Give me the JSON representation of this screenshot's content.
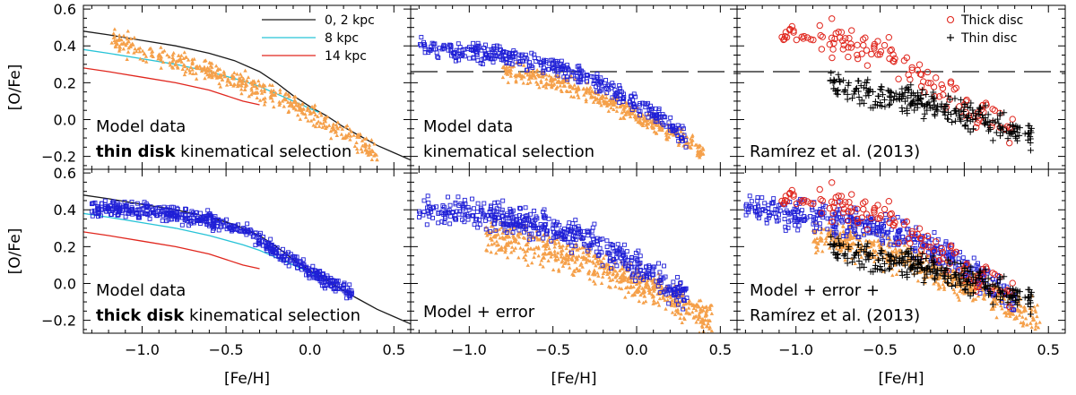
{
  "figure": {
    "x_label": "[Fe/H]",
    "y_label": "[O/Fe]",
    "x_ticks": [
      "−1.0",
      "−0.5",
      "0.0",
      "0.5"
    ],
    "y_ticks": [
      "0.6",
      "0.4",
      "0.2",
      "0.0",
      "−0.2"
    ]
  },
  "chart_data": [
    {
      "type": "scatter",
      "panel": "top-left",
      "xlim": [
        -1.35,
        0.6
      ],
      "ylim": [
        -0.27,
        0.62
      ],
      "annotation": [
        "Model data",
        "thin disk",
        " kinematical selection"
      ],
      "legend": {
        "position": "top-right",
        "entries": [
          {
            "label": "0, 2  kpc",
            "color": "#1a1a1a"
          },
          {
            "label": "8  kpc",
            "color": "#27c3d7"
          },
          {
            "label": "14  kpc",
            "color": "#e0261d"
          }
        ]
      },
      "series": [
        {
          "name": "0, 2  kpc",
          "style": "line",
          "color": "#1a1a1a",
          "x": [
            -1.35,
            -1.2,
            -1.0,
            -0.8,
            -0.6,
            -0.45,
            -0.3,
            -0.2,
            -0.1,
            0.0,
            0.1,
            0.2,
            0.3,
            0.4,
            0.5,
            0.6
          ],
          "y": [
            0.48,
            0.46,
            0.43,
            0.4,
            0.36,
            0.32,
            0.26,
            0.2,
            0.13,
            0.07,
            0.02,
            -0.04,
            -0.09,
            -0.14,
            -0.18,
            -0.22
          ]
        },
        {
          "name": "8  kpc",
          "style": "line",
          "color": "#27c3d7",
          "x": [
            -1.35,
            -1.2,
            -1.0,
            -0.8,
            -0.6,
            -0.4,
            -0.3,
            -0.2,
            -0.1,
            0.0,
            0.05
          ],
          "y": [
            0.38,
            0.36,
            0.33,
            0.3,
            0.26,
            0.21,
            0.18,
            0.14,
            0.1,
            0.06,
            0.04
          ]
        },
        {
          "name": "14  kpc",
          "style": "line",
          "color": "#e0261d",
          "x": [
            -1.35,
            -1.2,
            -1.0,
            -0.8,
            -0.6,
            -0.4,
            -0.3
          ],
          "y": [
            0.28,
            0.26,
            0.23,
            0.2,
            0.16,
            0.1,
            0.08
          ]
        },
        {
          "name": "",
          "style": "scatter-triangle",
          "color": "#f5a04a",
          "n": 450,
          "seed": 11,
          "x": [
            -1.2,
            -1.0,
            -0.8,
            -0.6,
            -0.4,
            -0.2,
            0.0,
            0.2,
            0.4
          ],
          "y": [
            0.44,
            0.37,
            0.32,
            0.26,
            0.2,
            0.12,
            0.03,
            -0.07,
            -0.19
          ],
          "spread": 0.035
        }
      ]
    },
    {
      "type": "scatter",
      "panel": "top-middle",
      "xlim": [
        -1.35,
        0.6
      ],
      "ylim": [
        -0.27,
        0.62
      ],
      "annotation": [
        "Model data",
        "kinematical selection"
      ],
      "dashed_line_y": 0.26,
      "series": [
        {
          "name": "",
          "style": "scatter-triangle",
          "color": "#f5a04a",
          "n": 420,
          "seed": 21,
          "x": [
            -0.8,
            -0.6,
            -0.4,
            -0.2,
            0.0,
            0.2,
            0.4
          ],
          "y": [
            0.26,
            0.23,
            0.18,
            0.11,
            0.03,
            -0.07,
            -0.18
          ],
          "spread": 0.03
        },
        {
          "name": "",
          "style": "scatter-square",
          "color": "#1f1fd6",
          "n": 380,
          "seed": 31,
          "x": [
            -1.3,
            -1.1,
            -0.9,
            -0.7,
            -0.5,
            -0.3,
            -0.1,
            0.1,
            0.3
          ],
          "y": [
            0.4,
            0.38,
            0.36,
            0.33,
            0.29,
            0.23,
            0.14,
            0.04,
            -0.1
          ],
          "spread": 0.03
        }
      ]
    },
    {
      "type": "scatter",
      "panel": "top-right",
      "xlim": [
        -1.35,
        0.6
      ],
      "ylim": [
        -0.27,
        0.62
      ],
      "annotation": [
        "Ramírez et al. (2013)"
      ],
      "legend": {
        "position": "top-right",
        "entries": [
          {
            "label": "Thick disc",
            "marker": "circle",
            "color": "#e0261d"
          },
          {
            "label": "Thin disc",
            "marker": "plus",
            "color": "#000000"
          }
        ]
      },
      "dashed_line_y": 0.26,
      "series": [
        {
          "name": "Thick disc",
          "style": "scatter-circle",
          "color": "#e0261d",
          "n": 130,
          "seed": 41,
          "x": [
            -1.1,
            -0.9,
            -0.7,
            -0.5,
            -0.3,
            -0.1,
            0.1,
            0.3
          ],
          "y": [
            0.46,
            0.44,
            0.42,
            0.36,
            0.27,
            0.15,
            0.04,
            -0.06
          ],
          "spread": 0.055
        },
        {
          "name": "Thin disc",
          "style": "scatter-plus",
          "color": "#000000",
          "n": 280,
          "seed": 51,
          "x": [
            -0.8,
            -0.6,
            -0.4,
            -0.2,
            0.0,
            0.2,
            0.4
          ],
          "y": [
            0.2,
            0.15,
            0.11,
            0.08,
            0.03,
            -0.03,
            -0.09
          ],
          "spread": 0.045
        }
      ]
    },
    {
      "type": "scatter",
      "panel": "bottom-left",
      "xlim": [
        -1.35,
        0.6
      ],
      "ylim": [
        -0.27,
        0.62
      ],
      "annotation": [
        "Model data",
        "thick disk",
        " kinematical selection"
      ],
      "series": [
        {
          "name": "0, 2  kpc",
          "style": "line",
          "color": "#1a1a1a",
          "x": [
            -1.35,
            -1.2,
            -1.0,
            -0.8,
            -0.6,
            -0.45,
            -0.3,
            -0.2,
            -0.1,
            0.0,
            0.1,
            0.2,
            0.3,
            0.4,
            0.5,
            0.6
          ],
          "y": [
            0.48,
            0.46,
            0.43,
            0.4,
            0.36,
            0.32,
            0.26,
            0.2,
            0.13,
            0.07,
            0.02,
            -0.04,
            -0.09,
            -0.14,
            -0.18,
            -0.22
          ]
        },
        {
          "name": "8  kpc",
          "style": "line",
          "color": "#27c3d7",
          "x": [
            -1.35,
            -1.2,
            -1.0,
            -0.8,
            -0.6,
            -0.4,
            -0.3,
            -0.2,
            -0.1,
            0.0,
            0.05
          ],
          "y": [
            0.38,
            0.36,
            0.33,
            0.3,
            0.26,
            0.21,
            0.18,
            0.14,
            0.1,
            0.06,
            0.04
          ]
        },
        {
          "name": "14  kpc",
          "style": "line",
          "color": "#e0261d",
          "x": [
            -1.35,
            -1.2,
            -1.0,
            -0.8,
            -0.6,
            -0.4,
            -0.3
          ],
          "y": [
            0.28,
            0.26,
            0.23,
            0.2,
            0.16,
            0.1,
            0.08
          ]
        },
        {
          "name": "",
          "style": "scatter-square",
          "color": "#1f1fd6",
          "n": 520,
          "seed": 61,
          "x": [
            -1.3,
            -1.1,
            -0.9,
            -0.7,
            -0.5,
            -0.35,
            -0.2,
            -0.05,
            0.1,
            0.25
          ],
          "y": [
            0.41,
            0.4,
            0.38,
            0.36,
            0.32,
            0.27,
            0.18,
            0.09,
            0.02,
            -0.06
          ],
          "spread": 0.025
        }
      ]
    },
    {
      "type": "scatter",
      "panel": "bottom-middle",
      "xlim": [
        -1.35,
        0.6
      ],
      "ylim": [
        -0.27,
        0.62
      ],
      "annotation": [
        "Model + error"
      ],
      "series": [
        {
          "name": "",
          "style": "scatter-triangle",
          "color": "#f5a04a",
          "n": 650,
          "seed": 71,
          "x": [
            -0.9,
            -0.7,
            -0.5,
            -0.3,
            -0.1,
            0.1,
            0.3,
            0.45
          ],
          "y": [
            0.26,
            0.23,
            0.18,
            0.12,
            0.04,
            -0.04,
            -0.13,
            -0.2
          ],
          "spread": 0.055
        },
        {
          "name": "",
          "style": "scatter-square",
          "color": "#1f1fd6",
          "n": 480,
          "seed": 81,
          "x": [
            -1.3,
            -1.1,
            -0.9,
            -0.7,
            -0.5,
            -0.3,
            -0.1,
            0.1,
            0.3
          ],
          "y": [
            0.41,
            0.39,
            0.37,
            0.34,
            0.3,
            0.24,
            0.15,
            0.05,
            -0.08
          ],
          "spread": 0.05
        }
      ]
    },
    {
      "type": "scatter",
      "panel": "bottom-right",
      "xlim": [
        -1.35,
        0.6
      ],
      "ylim": [
        -0.27,
        0.62
      ],
      "annotation": [
        "Model + error +",
        "Ramírez et al. (2013)"
      ],
      "series": [
        {
          "name": "",
          "style": "scatter-triangle",
          "color": "#f5a04a",
          "n": 600,
          "seed": 91,
          "x": [
            -0.9,
            -0.7,
            -0.5,
            -0.3,
            -0.1,
            0.1,
            0.3,
            0.45
          ],
          "y": [
            0.26,
            0.23,
            0.18,
            0.12,
            0.04,
            -0.04,
            -0.13,
            -0.2
          ],
          "spread": 0.055
        },
        {
          "name": "",
          "style": "scatter-square",
          "color": "#1f1fd6",
          "n": 420,
          "seed": 101,
          "x": [
            -1.3,
            -1.1,
            -0.9,
            -0.7,
            -0.5,
            -0.3,
            -0.1,
            0.1,
            0.3
          ],
          "y": [
            0.41,
            0.39,
            0.37,
            0.34,
            0.3,
            0.24,
            0.15,
            0.05,
            -0.08
          ],
          "spread": 0.05
        },
        {
          "name": "Thick disc",
          "style": "scatter-circle",
          "color": "#e0261d",
          "n": 130,
          "seed": 41,
          "x": [
            -1.1,
            -0.9,
            -0.7,
            -0.5,
            -0.3,
            -0.1,
            0.1,
            0.3
          ],
          "y": [
            0.46,
            0.44,
            0.42,
            0.36,
            0.27,
            0.15,
            0.04,
            -0.06
          ],
          "spread": 0.055
        },
        {
          "name": "Thin disc",
          "style": "scatter-plus",
          "color": "#000000",
          "n": 280,
          "seed": 51,
          "x": [
            -0.8,
            -0.6,
            -0.4,
            -0.2,
            0.0,
            0.2,
            0.4
          ],
          "y": [
            0.2,
            0.15,
            0.11,
            0.08,
            0.03,
            -0.03,
            -0.09
          ],
          "spread": 0.045
        }
      ]
    }
  ]
}
